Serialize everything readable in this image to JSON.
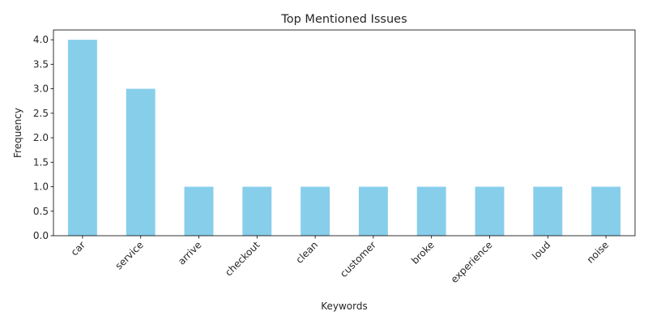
{
  "chart_data": {
    "type": "bar",
    "title": "Top Mentioned Issues",
    "xlabel": "Keywords",
    "ylabel": "Frequency",
    "categories": [
      "car",
      "service",
      "arrive",
      "checkout",
      "clean",
      "customer",
      "broke",
      "experience",
      "loud",
      "noise"
    ],
    "values": [
      4,
      3,
      1,
      1,
      1,
      1,
      1,
      1,
      1,
      1
    ],
    "ylim": [
      0,
      4.2
    ],
    "yticks": [
      "0.0",
      "0.5",
      "1.0",
      "1.5",
      "2.0",
      "2.5",
      "3.0",
      "3.5",
      "4.0"
    ],
    "bar_color": "#87ceeb",
    "grid": false,
    "legend": false
  }
}
